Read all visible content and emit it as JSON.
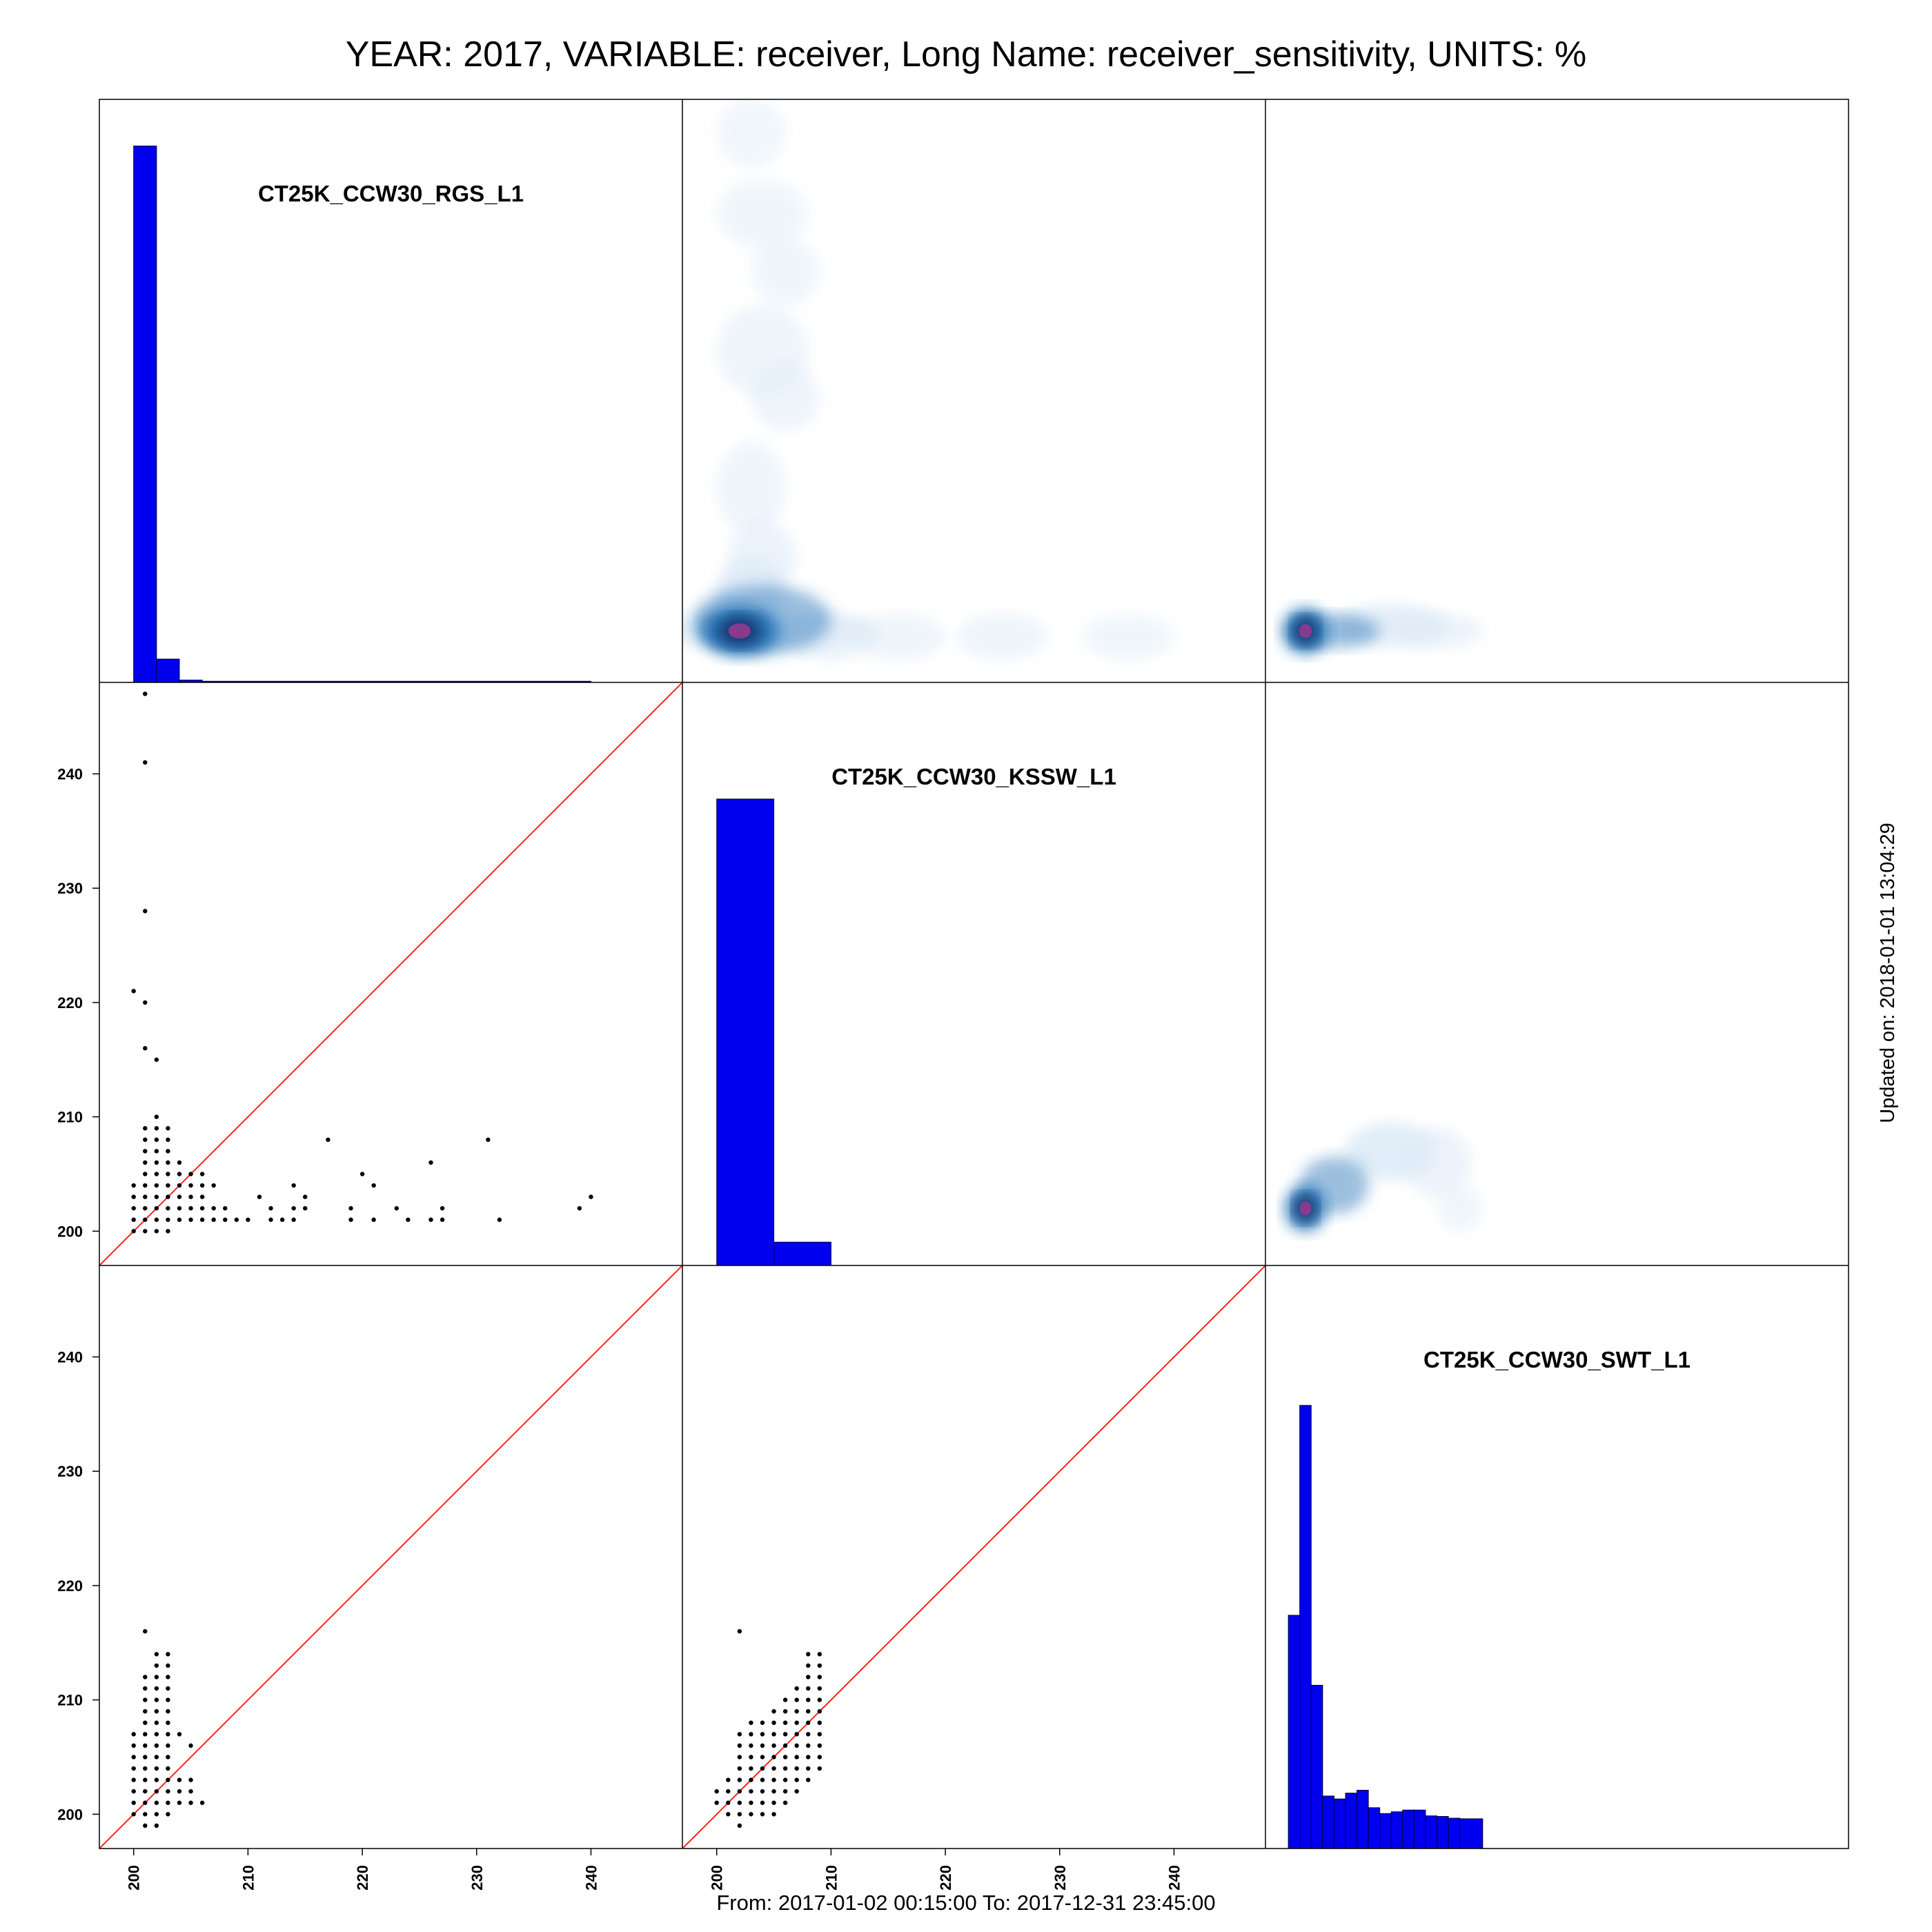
{
  "header": {
    "title": "YEAR: 2017, VARIABLE: receiver, Long Name: receiver_sensitivity, UNITS: %"
  },
  "footer": {
    "date_range": "From: 2017-01-02 00:15:00 To: 2017-12-31 23:45:00",
    "updated": "Updated on: 2018-01-01 13:04:29"
  },
  "colors": {
    "histogram": "#0000ee",
    "points": "#000000",
    "identity_line": "#ff2020",
    "density_low": "#deebf7",
    "density_mid": "#2171b5",
    "density_high": "#08306b",
    "density_peak": "#8e3a8e"
  },
  "chart_data": {
    "type": "scatter",
    "layout": "scatterplot-matrix",
    "variables": [
      "CT25K_CCW30_RGS_L1",
      "CT25K_CCW30_KSSW_L1",
      "CT25K_CCW30_SWT_L1"
    ],
    "axis_range": [
      197,
      248
    ],
    "ticks": [
      200,
      210,
      220,
      230,
      240
    ],
    "tick_labels": [
      "200",
      "210",
      "220",
      "230",
      "240"
    ],
    "diagonal_histograms": [
      {
        "variable": "CT25K_CCW30_RGS_L1",
        "bins": [
          [
            200,
            202,
            0.92
          ],
          [
            202,
            204,
            0.04
          ],
          [
            204,
            206,
            0.004
          ],
          [
            206,
            240,
            0.002
          ]
        ]
      },
      {
        "variable": "CT25K_CCW30_KSSW_L1",
        "bins": [
          [
            200,
            205,
            0.8
          ],
          [
            205,
            210,
            0.04
          ]
        ]
      },
      {
        "variable": "CT25K_CCW30_SWT_L1",
        "bins": [
          [
            199,
            200,
            0.4
          ],
          [
            200,
            201,
            0.76
          ],
          [
            201,
            202,
            0.28
          ],
          [
            202,
            203,
            0.09
          ],
          [
            203,
            204,
            0.085
          ],
          [
            204,
            205,
            0.095
          ],
          [
            205,
            206,
            0.1
          ],
          [
            206,
            207,
            0.07
          ],
          [
            207,
            208,
            0.06
          ],
          [
            208,
            209,
            0.063
          ],
          [
            209,
            210,
            0.066
          ],
          [
            210,
            211,
            0.066
          ],
          [
            211,
            212,
            0.056
          ],
          [
            212,
            213,
            0.055
          ],
          [
            213,
            214,
            0.052
          ],
          [
            214,
            216,
            0.051
          ]
        ]
      }
    ],
    "scatter_panels": [
      {
        "x": "CT25K_CCW30_RGS_L1",
        "y": "CT25K_CCW30_KSSW_L1",
        "identity_line": true,
        "x_columns": [
          [
            200,
            200,
            204
          ],
          [
            201,
            200,
            209
          ],
          [
            202,
            200,
            210
          ],
          [
            203,
            200,
            209
          ],
          [
            204,
            201,
            206
          ],
          [
            205,
            201,
            205
          ],
          [
            206,
            201,
            205
          ]
        ],
        "points": [
          [
            201,
            247
          ],
          [
            201,
            241
          ],
          [
            201,
            228
          ],
          [
            200,
            221
          ],
          [
            201,
            220
          ],
          [
            201,
            216
          ],
          [
            202,
            215
          ],
          [
            207,
            201
          ],
          [
            208,
            201
          ],
          [
            209,
            201
          ],
          [
            210,
            201
          ],
          [
            207,
            202
          ],
          [
            208,
            202
          ],
          [
            207,
            204
          ],
          [
            211,
            203
          ],
          [
            212,
            201
          ],
          [
            212,
            202
          ],
          [
            213,
            201
          ],
          [
            214,
            201
          ],
          [
            214,
            202
          ],
          [
            214,
            204
          ],
          [
            215,
            202
          ],
          [
            215,
            203
          ],
          [
            217,
            208
          ],
          [
            219,
            201
          ],
          [
            219,
            202
          ],
          [
            220,
            205
          ],
          [
            221,
            201
          ],
          [
            221,
            204
          ],
          [
            223,
            202
          ],
          [
            224,
            201
          ],
          [
            226,
            201
          ],
          [
            226,
            206
          ],
          [
            227,
            201
          ],
          [
            227,
            202
          ],
          [
            231,
            208
          ],
          [
            232,
            201
          ],
          [
            239,
            202
          ],
          [
            240,
            203
          ]
        ]
      },
      {
        "x": "CT25K_CCW30_RGS_L1",
        "y": "CT25K_CCW30_SWT_L1",
        "identity_line": true,
        "x_columns": [
          [
            200,
            200,
            207
          ],
          [
            201,
            199,
            212
          ],
          [
            202,
            199,
            214
          ],
          [
            203,
            200,
            214
          ],
          [
            204,
            201,
            203
          ],
          [
            205,
            201,
            203
          ]
        ],
        "points": [
          [
            201,
            216
          ],
          [
            204,
            207
          ],
          [
            205,
            206
          ],
          [
            206,
            201
          ]
        ]
      },
      {
        "x": "CT25K_CCW30_KSSW_L1",
        "y": "CT25K_CCW30_SWT_L1",
        "identity_line": true,
        "x_columns": [
          [
            200,
            201,
            202
          ],
          [
            201,
            200,
            203
          ],
          [
            202,
            199,
            207
          ],
          [
            203,
            200,
            208
          ],
          [
            204,
            200,
            208
          ],
          [
            205,
            200,
            209
          ],
          [
            206,
            201,
            210
          ],
          [
            207,
            202,
            211
          ],
          [
            208,
            203,
            214
          ],
          [
            209,
            204,
            214
          ]
        ],
        "points": [
          [
            202,
            216
          ]
        ]
      }
    ],
    "density_panels": [
      {
        "x": "CT25K_CCW30_KSSW_L1",
        "y": "CT25K_CCW30_RGS_L1",
        "blobs": [
          [
            202,
            201.5,
            3.5,
            2.2,
            1.0
          ],
          [
            204,
            202.5,
            6,
            3,
            0.5
          ],
          [
            204,
            201.5,
            10,
            1.6,
            0.25
          ],
          [
            203,
            205,
            3,
            3,
            0.25
          ],
          [
            210,
            201,
            4,
            2,
            0.12
          ],
          [
            216,
            201,
            4,
            2,
            0.08
          ],
          [
            225,
            201,
            4,
            2,
            0.08
          ],
          [
            236,
            201,
            4,
            2,
            0.06
          ],
          [
            203,
            245,
            3,
            3,
            0.05
          ],
          [
            204,
            238,
            4,
            3,
            0.06
          ],
          [
            206,
            233,
            3,
            3,
            0.06
          ],
          [
            204,
            226,
            4,
            4,
            0.08
          ],
          [
            206,
            222,
            3,
            3,
            0.07
          ],
          [
            203,
            214,
            3,
            4,
            0.08
          ],
          [
            204,
            208,
            3,
            3,
            0.12
          ]
        ]
      },
      {
        "x": "CT25K_CCW30_SWT_L1",
        "y": "CT25K_CCW30_RGS_L1",
        "blobs": [
          [
            200.5,
            201.5,
            2,
            2,
            1.0
          ],
          [
            203,
            201.5,
            4,
            1.5,
            0.5
          ],
          [
            208,
            202,
            5,
            1.8,
            0.25
          ],
          [
            212,
            201.5,
            4,
            1.5,
            0.12
          ]
        ]
      },
      {
        "x": "CT25K_CCW30_SWT_L1",
        "y": "CT25K_CCW30_KSSW_L1",
        "blobs": [
          [
            200.5,
            202,
            1.8,
            2,
            1.0
          ],
          [
            203,
            204,
            3,
            2.5,
            0.5
          ],
          [
            208,
            207,
            4,
            2.5,
            0.28
          ],
          [
            212,
            206,
            3,
            3,
            0.12
          ],
          [
            214,
            202,
            2,
            2,
            0.06
          ]
        ]
      }
    ]
  }
}
